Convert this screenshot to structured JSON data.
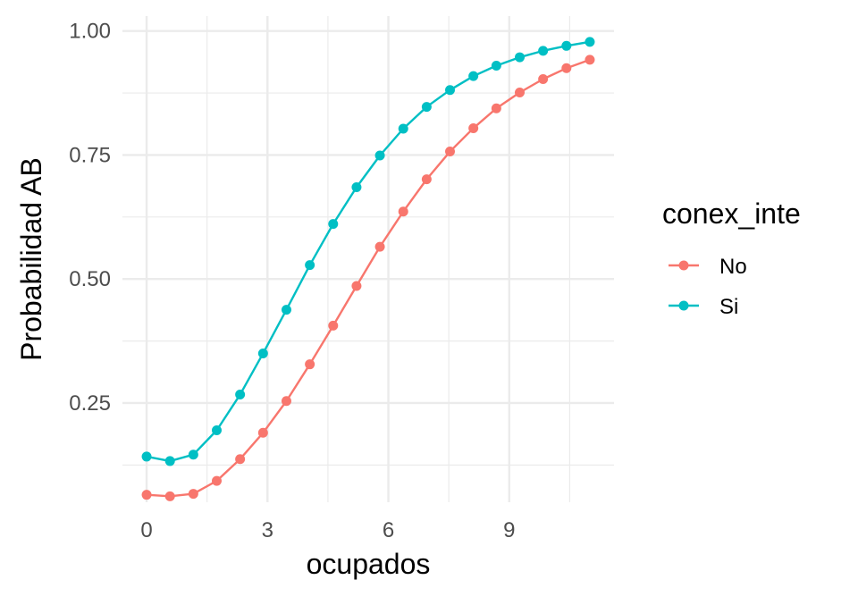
{
  "chart_data": {
    "type": "line",
    "title": "",
    "xlabel": "ocupados",
    "ylabel": "Probabilidad AB",
    "xlim": [
      -0.6,
      11.6
    ],
    "ylim": [
      0.05,
      1.03
    ],
    "x_ticks": [
      0,
      3,
      6,
      9
    ],
    "x_tick_labels": [
      "0",
      "3",
      "6",
      "9"
    ],
    "x_minor": [
      1.5,
      4.5,
      7.5,
      10.5
    ],
    "y_ticks": [
      0.25,
      0.5,
      0.75,
      1.0
    ],
    "y_tick_labels": [
      "0.25",
      "0.50",
      "0.75",
      "1.00"
    ],
    "y_minor": [
      0.125,
      0.375,
      0.625,
      0.875
    ],
    "grid": true,
    "legend_position": "right",
    "legend_title": "conex_inte",
    "x": [
      0,
      0.58,
      1.16,
      1.74,
      2.32,
      2.89,
      3.47,
      4.05,
      4.63,
      5.21,
      5.79,
      6.37,
      6.95,
      7.53,
      8.11,
      8.68,
      9.26,
      9.84,
      10.42,
      11.0
    ],
    "series": [
      {
        "name": "No",
        "color": "#F8766D",
        "values": [
          0.065,
          0.062,
          0.067,
          0.093,
          0.137,
          0.19,
          0.254,
          0.328,
          0.406,
          0.486,
          0.565,
          0.636,
          0.701,
          0.757,
          0.804,
          0.844,
          0.876,
          0.903,
          0.925,
          0.942
        ]
      },
      {
        "name": "Si",
        "color": "#00BFC4",
        "values": [
          0.142,
          0.133,
          0.146,
          0.195,
          0.267,
          0.35,
          0.438,
          0.528,
          0.611,
          0.685,
          0.749,
          0.803,
          0.847,
          0.881,
          0.909,
          0.93,
          0.947,
          0.96,
          0.97,
          0.978
        ]
      }
    ]
  }
}
